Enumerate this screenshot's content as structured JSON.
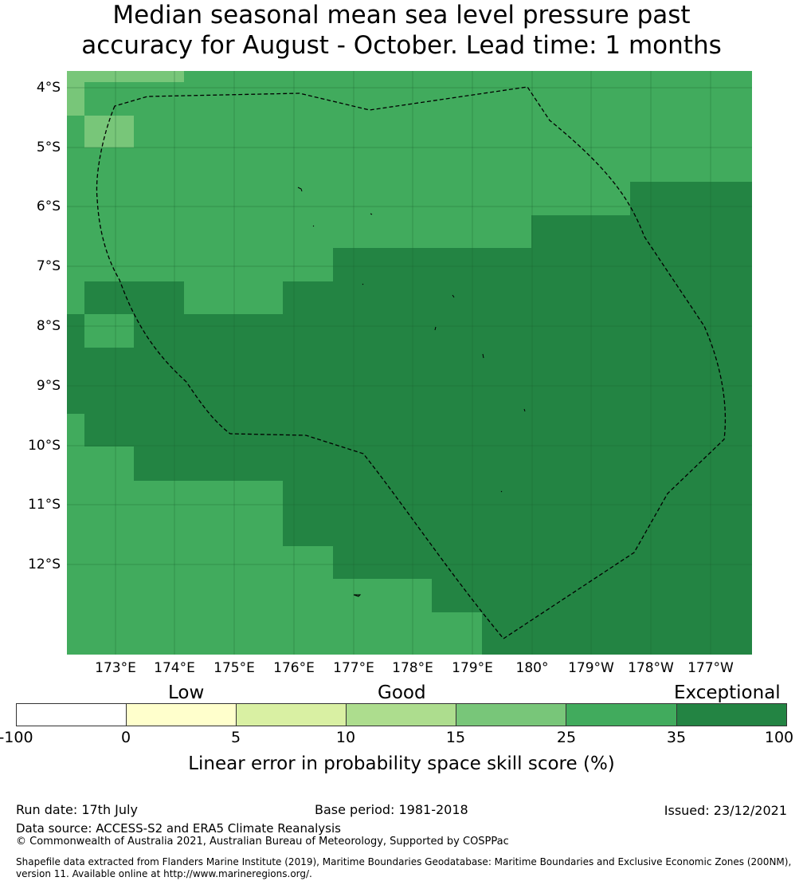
{
  "title_line1": "Median seasonal mean sea level pressure past",
  "title_line2": "accuracy for August - October. Lead time: 1 months",
  "map": {
    "lat_labels": [
      "4°S",
      "5°S",
      "6°S",
      "7°S",
      "8°S",
      "9°S",
      "10°S",
      "11°S",
      "12°S"
    ],
    "lon_labels": [
      "173°E",
      "174°E",
      "175°E",
      "176°E",
      "177°E",
      "178°E",
      "179°E",
      "180°",
      "179°W",
      "178°W",
      "177°W"
    ],
    "colors": {
      "25-35": "#41ab5d",
      "35-100": "#238443",
      "15-25": "#78c679"
    }
  },
  "colorbar": {
    "categories": [
      "Low",
      "Good",
      "Exceptional"
    ],
    "ticks": [
      "-100",
      "0",
      "5",
      "10",
      "15",
      "25",
      "35",
      "100"
    ],
    "colors": [
      "#ffffff",
      "#ffffcc",
      "#d9f0a3",
      "#addd8e",
      "#78c679",
      "#41ab5d",
      "#238443"
    ],
    "label": "Linear error in probability space skill score (%)"
  },
  "footer": {
    "run_date": "Run date: 17th July",
    "base_period": "Base period: 1981-2018",
    "issued": "Issued: 23/12/2021",
    "data_source": "Data source: ACCESS-S2 and ERA5 Climate Reanalysis",
    "copyright": "© Commonwealth of Australia 2021, Australian Bureau of Meteorology, Supported by COSPPac",
    "shapefile_1": "Shapefile data extracted from Flanders Marine Institute (2019), Maritime Boundaries Geodatabase: Maritime Boundaries and Exclusive Economic Zones (200NM),",
    "shapefile_2": "version 11. Available online at http://www.marineregions.org/."
  }
}
